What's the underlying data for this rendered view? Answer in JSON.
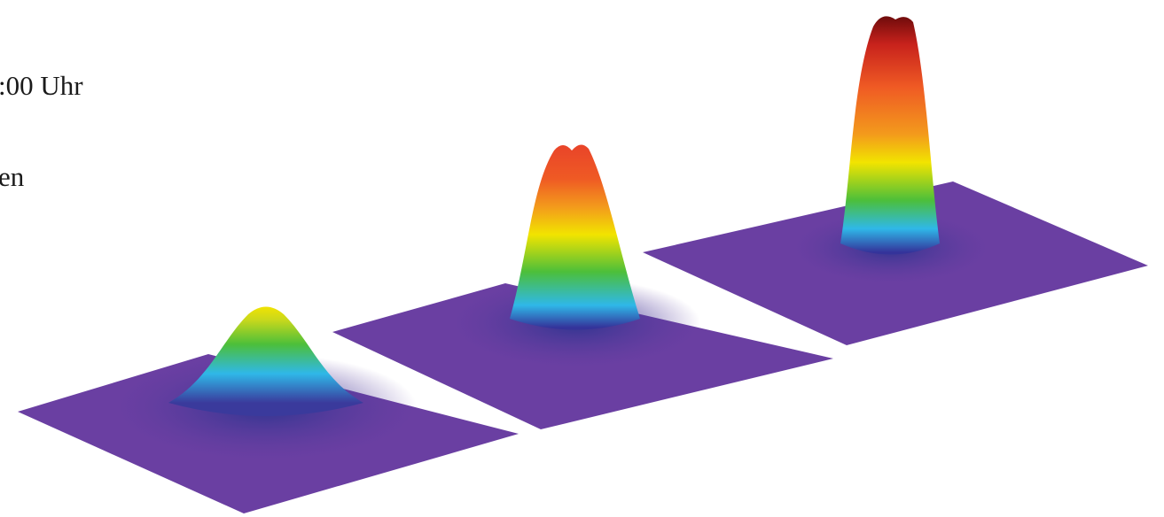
{
  "texts": {
    "line_1": ":00 Uhr",
    "line_2": "en"
  }
}
